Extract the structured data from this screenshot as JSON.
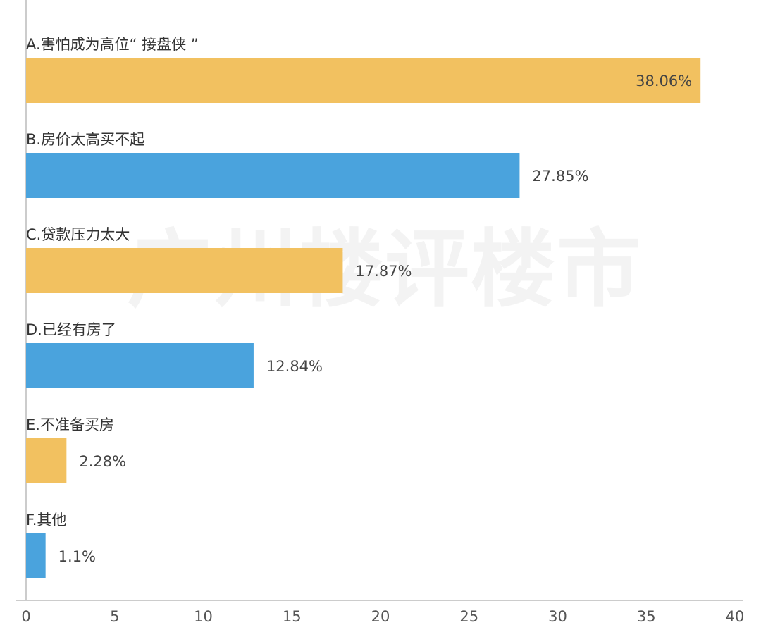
{
  "chart_data": {
    "type": "bar",
    "orientation": "horizontal",
    "categories": [
      "A.害怕成为高位“ 接盘侠 ”",
      "B.房价太高买不起",
      "C.贷款压力太大",
      "D.已经有房了",
      "E.不准备买房",
      "F.其他"
    ],
    "values": [
      38.06,
      27.85,
      17.87,
      12.84,
      2.28,
      1.1
    ],
    "value_labels": [
      "38.06%",
      "27.85%",
      "17.87%",
      "12.84%",
      "2.28%",
      "1.1%"
    ],
    "colors": [
      "#F2C160",
      "#4AA3DD"
    ],
    "xlim": [
      0,
      40
    ],
    "xticks": [
      0,
      5,
      10,
      15,
      20,
      25,
      30,
      35,
      40
    ],
    "grid": false,
    "legend": "none"
  },
  "watermark": "广州楼评楼市"
}
